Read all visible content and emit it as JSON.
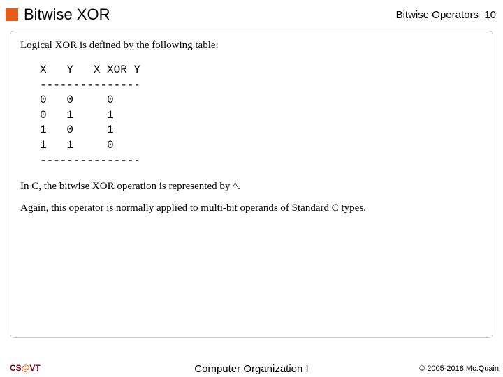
{
  "header": {
    "title": "Bitwise XOR",
    "section": "Bitwise Operators",
    "page": "10"
  },
  "content": {
    "intro": "Logical XOR is defined by the following table:",
    "table": "X   Y   X XOR Y\n---------------\n0   0     0\n0   1     1\n1   0     1\n1   1     0\n---------------",
    "para1": "In C, the bitwise XOR operation is represented by ^.",
    "para2": "Again, this operator is normally applied to multi-bit operands of Standard C types."
  },
  "footer": {
    "cs": "CS",
    "at": "@",
    "vt": "VT",
    "center": "Computer Organization I",
    "right": "© 2005-2018 Mc.Quain"
  },
  "colors": {
    "accent": "#e65c1a",
    "maroon": "#7a0019",
    "border": "#d0d0d0",
    "background": "#ffffff"
  }
}
